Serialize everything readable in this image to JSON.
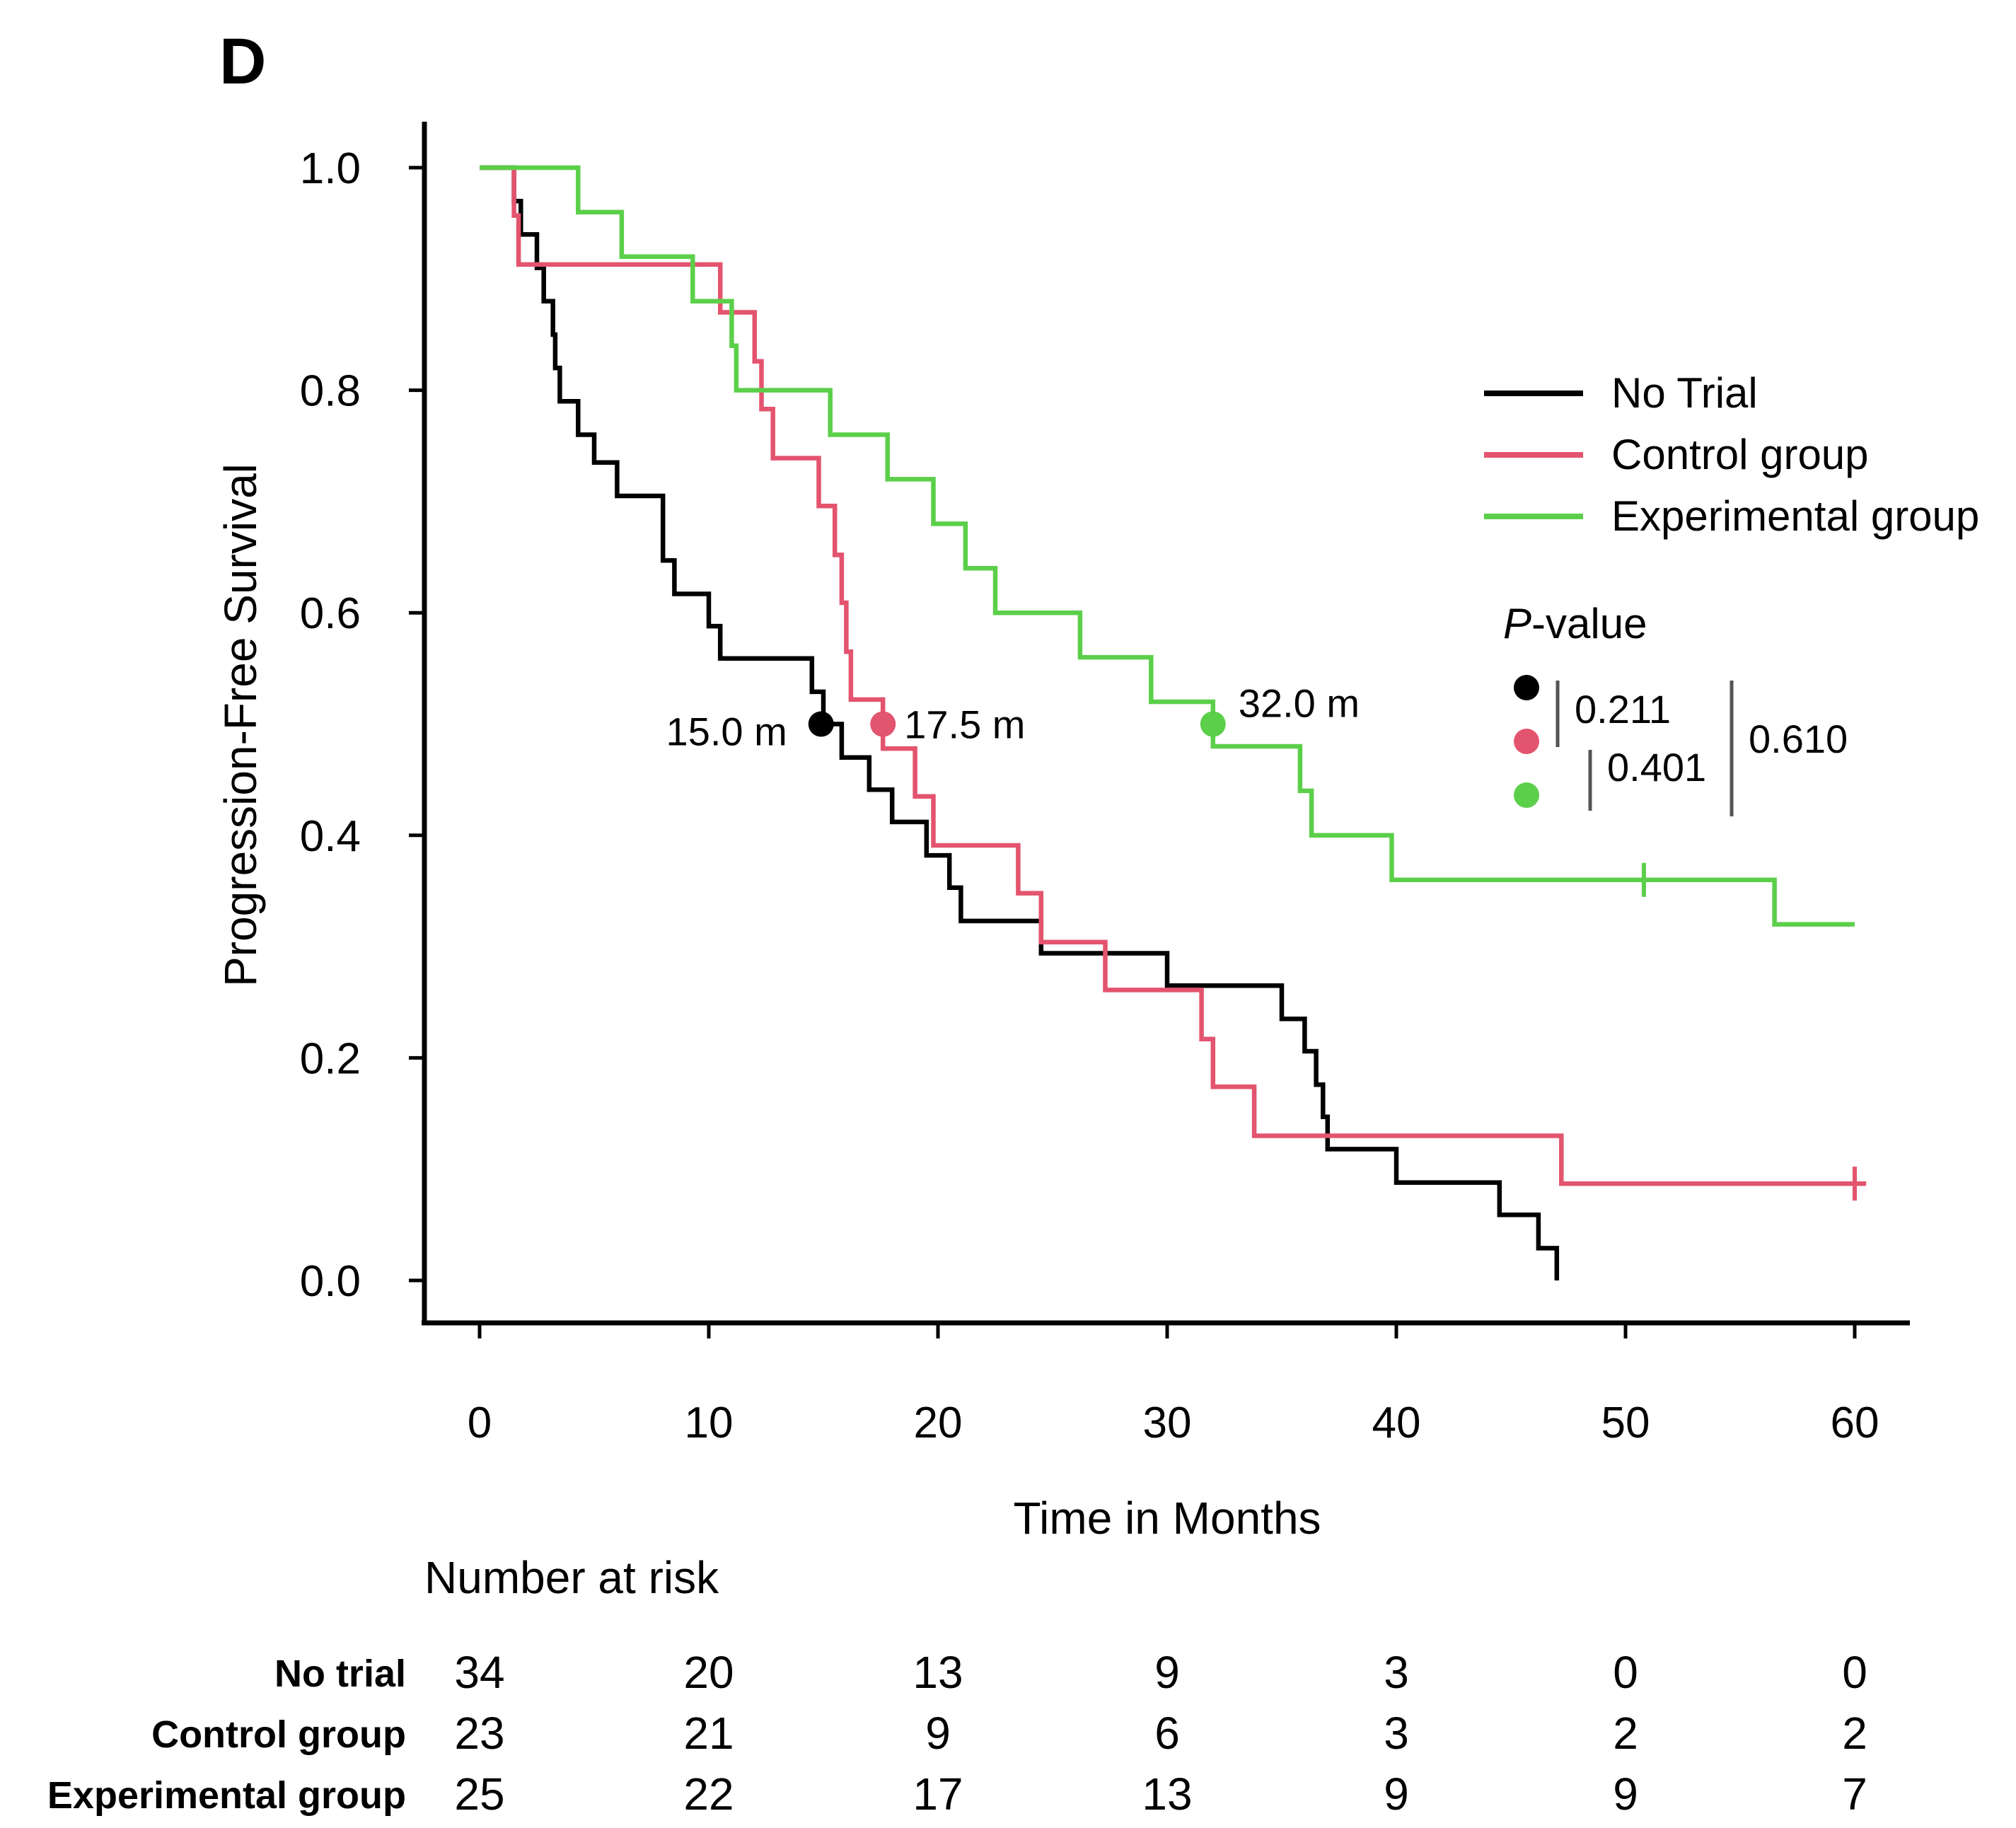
{
  "panel_label": "D",
  "chart_data": {
    "type": "line",
    "subtype": "kaplan-meier step",
    "title": "",
    "xlabel": "Time in Months",
    "ylabel": "Progression-Free Survival",
    "xlim": [
      0,
      60
    ],
    "ylim": [
      0,
      1.0
    ],
    "xticks": [
      0,
      10,
      20,
      30,
      40,
      50,
      60
    ],
    "yticks": [
      0.0,
      0.2,
      0.4,
      0.6,
      0.8,
      1.0
    ],
    "xtick_labels": [
      "0",
      "10",
      "20",
      "30",
      "40",
      "50",
      "60"
    ],
    "ytick_labels": [
      "0.0",
      "0.2",
      "0.4",
      "0.6",
      "0.8",
      "1.0"
    ],
    "grid": false,
    "legend_position": "right",
    "series": [
      {
        "name": "No Trial",
        "color": "#000000",
        "steps": [
          [
            0,
            1.0
          ],
          [
            1.5,
            1.0
          ],
          [
            1.5,
            0.97
          ],
          [
            1.8,
            0.97
          ],
          [
            1.8,
            0.94
          ],
          [
            2.5,
            0.94
          ],
          [
            2.5,
            0.91
          ],
          [
            2.8,
            0.91
          ],
          [
            2.8,
            0.88
          ],
          [
            3.2,
            0.88
          ],
          [
            3.2,
            0.85
          ],
          [
            3.3,
            0.85
          ],
          [
            3.3,
            0.82
          ],
          [
            3.5,
            0.82
          ],
          [
            3.5,
            0.79
          ],
          [
            4.3,
            0.79
          ],
          [
            4.3,
            0.76
          ],
          [
            5.0,
            0.76
          ],
          [
            5.0,
            0.735
          ],
          [
            6.0,
            0.735
          ],
          [
            6.0,
            0.705
          ],
          [
            8.0,
            0.705
          ],
          [
            8.0,
            0.647
          ],
          [
            8.5,
            0.647
          ],
          [
            8.5,
            0.617
          ],
          [
            10.0,
            0.617
          ],
          [
            10.0,
            0.588
          ],
          [
            10.5,
            0.588
          ],
          [
            10.5,
            0.559
          ],
          [
            14.5,
            0.559
          ],
          [
            14.5,
            0.529
          ],
          [
            15.0,
            0.529
          ],
          [
            15.0,
            0.5
          ],
          [
            15.8,
            0.5
          ],
          [
            15.8,
            0.47
          ],
          [
            17.0,
            0.47
          ],
          [
            17.0,
            0.441
          ],
          [
            18.0,
            0.441
          ],
          [
            18.0,
            0.412
          ],
          [
            19.5,
            0.412
          ],
          [
            19.5,
            0.382
          ],
          [
            20.5,
            0.382
          ],
          [
            20.5,
            0.353
          ],
          [
            21.0,
            0.353
          ],
          [
            21.0,
            0.323
          ],
          [
            24.5,
            0.323
          ],
          [
            24.5,
            0.294
          ],
          [
            30.0,
            0.294
          ],
          [
            30.0,
            0.265
          ],
          [
            35.0,
            0.265
          ],
          [
            35.0,
            0.235
          ],
          [
            36.0,
            0.235
          ],
          [
            36.0,
            0.206
          ],
          [
            36.5,
            0.206
          ],
          [
            36.5,
            0.176
          ],
          [
            36.8,
            0.176
          ],
          [
            36.8,
            0.147
          ],
          [
            37.0,
            0.147
          ],
          [
            37.0,
            0.118
          ],
          [
            40.0,
            0.118
          ],
          [
            40.0,
            0.088
          ],
          [
            44.5,
            0.088
          ],
          [
            44.5,
            0.059
          ],
          [
            46.2,
            0.059
          ],
          [
            46.2,
            0.029
          ],
          [
            47.0,
            0.029
          ],
          [
            47.0,
            0.0
          ]
        ],
        "censor_times": [],
        "median_label": "15.0 m",
        "median": [
          14.9,
          0.5
        ]
      },
      {
        "name": "Control group",
        "color": "#e3546e",
        "steps": [
          [
            0,
            1.0
          ],
          [
            1.5,
            1.0
          ],
          [
            1.5,
            0.957
          ],
          [
            1.7,
            0.957
          ],
          [
            1.7,
            0.913
          ],
          [
            10.5,
            0.913
          ],
          [
            10.5,
            0.87
          ],
          [
            12.0,
            0.87
          ],
          [
            12.0,
            0.826
          ],
          [
            12.3,
            0.826
          ],
          [
            12.3,
            0.783
          ],
          [
            12.8,
            0.783
          ],
          [
            12.8,
            0.739
          ],
          [
            14.8,
            0.739
          ],
          [
            14.8,
            0.696
          ],
          [
            15.5,
            0.696
          ],
          [
            15.5,
            0.652
          ],
          [
            15.8,
            0.652
          ],
          [
            15.8,
            0.609
          ],
          [
            16.0,
            0.609
          ],
          [
            16.0,
            0.565
          ],
          [
            16.2,
            0.565
          ],
          [
            16.2,
            0.522
          ],
          [
            17.6,
            0.522
          ],
          [
            17.6,
            0.478
          ],
          [
            19.0,
            0.478
          ],
          [
            19.0,
            0.435
          ],
          [
            19.8,
            0.435
          ],
          [
            19.8,
            0.391
          ],
          [
            23.5,
            0.391
          ],
          [
            23.5,
            0.348
          ],
          [
            24.5,
            0.348
          ],
          [
            24.5,
            0.304
          ],
          [
            27.3,
            0.304
          ],
          [
            27.3,
            0.261
          ],
          [
            31.5,
            0.261
          ],
          [
            31.5,
            0.217
          ],
          [
            32.0,
            0.217
          ],
          [
            32.0,
            0.174
          ],
          [
            33.8,
            0.174
          ],
          [
            33.8,
            0.13
          ],
          [
            47.2,
            0.13
          ],
          [
            47.2,
            0.087
          ],
          [
            60.5,
            0.087
          ]
        ],
        "censor_times": [
          60.0
        ],
        "median_label": "17.5 m",
        "median": [
          17.6,
          0.5
        ]
      },
      {
        "name": "Experimental group",
        "color": "#5ccf4a",
        "steps": [
          [
            0,
            1.0
          ],
          [
            4.3,
            1.0
          ],
          [
            4.3,
            0.96
          ],
          [
            6.2,
            0.96
          ],
          [
            6.2,
            0.92
          ],
          [
            9.3,
            0.92
          ],
          [
            9.3,
            0.88
          ],
          [
            11.0,
            0.88
          ],
          [
            11.0,
            0.84
          ],
          [
            11.2,
            0.84
          ],
          [
            11.2,
            0.8
          ],
          [
            15.3,
            0.8
          ],
          [
            15.3,
            0.76
          ],
          [
            17.8,
            0.76
          ],
          [
            17.8,
            0.72
          ],
          [
            19.8,
            0.72
          ],
          [
            19.8,
            0.68
          ],
          [
            21.2,
            0.68
          ],
          [
            21.2,
            0.64
          ],
          [
            22.5,
            0.64
          ],
          [
            22.5,
            0.6
          ],
          [
            26.2,
            0.6
          ],
          [
            26.2,
            0.56
          ],
          [
            29.3,
            0.56
          ],
          [
            29.3,
            0.52
          ],
          [
            32.0,
            0.52
          ],
          [
            32.0,
            0.48
          ],
          [
            35.8,
            0.48
          ],
          [
            35.8,
            0.44
          ],
          [
            36.3,
            0.44
          ],
          [
            36.3,
            0.4
          ],
          [
            39.8,
            0.4
          ],
          [
            39.8,
            0.36
          ],
          [
            56.5,
            0.36
          ],
          [
            56.5,
            0.32
          ],
          [
            60.0,
            0.32
          ]
        ],
        "censor_times": [
          50.8
        ],
        "median_label": "32.0 m",
        "median": [
          32.0,
          0.5
        ]
      }
    ],
    "pvalue_title_italic": "P",
    "pvalue_title_rest": "-value",
    "pvalues": [
      {
        "pair": "No Trial vs Control group",
        "value": "0.211"
      },
      {
        "pair": "Control group vs Experimental group",
        "value": "0.401"
      },
      {
        "pair": "No Trial vs Experimental group",
        "value": "0.610"
      }
    ],
    "risk_table": {
      "title": "Number at risk",
      "times": [
        0,
        10,
        20,
        30,
        40,
        50,
        60
      ],
      "rows": [
        {
          "label": "No trial",
          "values": [
            "34",
            "20",
            "13",
            "9",
            "3",
            "0",
            "0"
          ]
        },
        {
          "label": "Control group",
          "values": [
            "23",
            "21",
            "9",
            "6",
            "3",
            "2",
            "2"
          ]
        },
        {
          "label": "Experimental group",
          "values": [
            "25",
            "22",
            "17",
            "13",
            "9",
            "9",
            "7"
          ]
        }
      ]
    }
  }
}
